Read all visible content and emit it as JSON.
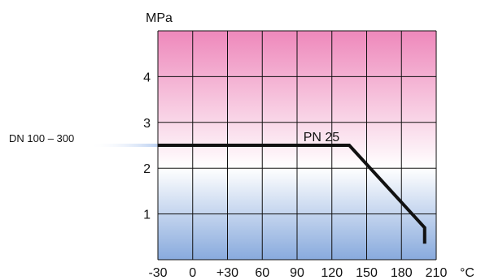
{
  "chart_data": {
    "type": "line",
    "title": "",
    "xlabel": "",
    "ylabel": "",
    "x_unit": "°C",
    "y_unit": "MPa",
    "xlim": [
      -30,
      210
    ],
    "ylim": [
      0,
      5
    ],
    "x_ticks": [
      "-30",
      "0",
      "+30",
      "60",
      "90",
      "120",
      "150",
      "180",
      "210"
    ],
    "y_ticks": [
      "1",
      "2",
      "3",
      "4"
    ],
    "grid": true,
    "background_gradient": {
      "top": "#ee88bb",
      "middle": "#ffffff",
      "bottom": "#88aadd"
    },
    "series": [
      {
        "name": "DN 100 – 300",
        "color": "#111111",
        "x": [
          -30,
          135,
          200,
          200
        ],
        "y": [
          2.5,
          2.5,
          0.7,
          0.35
        ]
      }
    ],
    "annotations": [
      {
        "text": "PN 25",
        "x": 111,
        "y": 2.5
      }
    ]
  }
}
